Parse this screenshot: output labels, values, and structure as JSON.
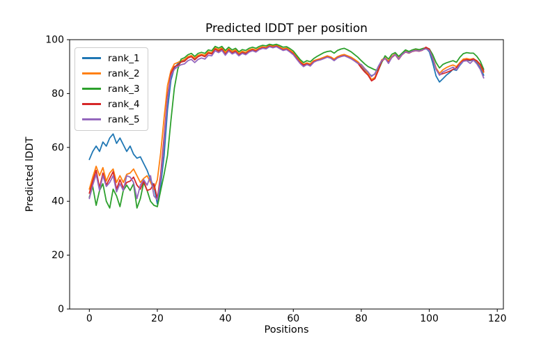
{
  "chart_data": {
    "type": "line",
    "title": "Predicted lDDT per position",
    "xlabel": "Positions",
    "ylabel": "Predicted lDDT",
    "xlim": [
      -5.8,
      121.8
    ],
    "ylim": [
      0,
      100
    ],
    "x_ticks": [
      0,
      20,
      40,
      60,
      80,
      100,
      120
    ],
    "y_ticks": [
      0,
      20,
      40,
      60,
      80,
      100
    ],
    "grid": false,
    "legend_position": "upper left",
    "x_start": 0,
    "x_step": 1,
    "n_points": 117,
    "series": [
      {
        "name": "rank_1",
        "color": "#1f77b4",
        "values": [
          55.5,
          58.5,
          60.5,
          58.5,
          62,
          60.5,
          63.5,
          65,
          61.5,
          63.5,
          61,
          58.5,
          60.5,
          57.5,
          56,
          56.5,
          54,
          51.5,
          48,
          45.5,
          39,
          46,
          57,
          74,
          85,
          89.5,
          91,
          92,
          92.3,
          93.5,
          94,
          92.8,
          94,
          94.5,
          94,
          95.3,
          95,
          96.8,
          96,
          96.8,
          95,
          96.5,
          95.3,
          96,
          94.6,
          95.5,
          95,
          96,
          96.5,
          96,
          96.8,
          97.2,
          97,
          97.8,
          97.4,
          97.8,
          97.1,
          96.4,
          96.8,
          95.9,
          95,
          93.4,
          91.8,
          90.5,
          91.2,
          90.8,
          92,
          92.5,
          92.8,
          93.3,
          93.8,
          93.4,
          92.6,
          93.5,
          94,
          94.3,
          93.8,
          93.3,
          92.5,
          91.6,
          89.8,
          88.4,
          87.6,
          86.6,
          87.2,
          90,
          92.3,
          93.2,
          91.8,
          93.6,
          94.6,
          92.9,
          94.6,
          95.6,
          95.2,
          95.8,
          96.1,
          95.9,
          96.3,
          96.9,
          95.5,
          91.5,
          86.5,
          84.3,
          85.5,
          86.8,
          87.8,
          89,
          88.6,
          90.5,
          92,
          92.4,
          92.2,
          92.6,
          91.5,
          89.5,
          86.8
        ]
      },
      {
        "name": "rank_2",
        "color": "#ff7f0e",
        "values": [
          44.5,
          49,
          53,
          49.5,
          52.5,
          47.5,
          50.5,
          52,
          47,
          49.5,
          47,
          50,
          50.5,
          52,
          49.5,
          47,
          48.5,
          49.5,
          47,
          44.5,
          48,
          58,
          71,
          83,
          88.5,
          91,
          91.5,
          92.2,
          92.6,
          93.7,
          94.1,
          93.2,
          94.2,
          94.6,
          94.2,
          95.5,
          95.2,
          96.9,
          96.3,
          97,
          95.3,
          96.6,
          95.6,
          96.2,
          94.9,
          95.7,
          95.3,
          96.2,
          96.6,
          96.2,
          96.9,
          97.4,
          97.1,
          98,
          97.6,
          97.9,
          97.3,
          96.6,
          96.9,
          96.1,
          95.2,
          93.6,
          92.1,
          90.8,
          91.4,
          91,
          92.2,
          92.6,
          93,
          93.5,
          94,
          93.6,
          92.8,
          93.7,
          94.2,
          94.5,
          94,
          93.5,
          92.7,
          91.8,
          90.5,
          89,
          87.3,
          85.2,
          86,
          89,
          92.5,
          93.3,
          92,
          93.8,
          94.7,
          93.1,
          94.7,
          95.7,
          95.3,
          95.9,
          96.2,
          96,
          96.4,
          96.8,
          96.2,
          93.5,
          89.5,
          87.5,
          88.8,
          89.6,
          90.2,
          90.6,
          90,
          91.5,
          92.8,
          93,
          92.7,
          93,
          92,
          90.5,
          87.8
        ]
      },
      {
        "name": "rank_3",
        "color": "#2ca02c",
        "values": [
          41.5,
          45.5,
          38.5,
          44,
          46.5,
          40,
          37.5,
          44.5,
          42,
          38,
          44,
          46,
          44,
          46.5,
          37.5,
          41,
          47,
          44,
          40,
          38.5,
          38,
          44,
          50,
          57,
          70,
          82,
          89,
          92.8,
          93.3,
          94.4,
          94.9,
          93.8,
          94.9,
          95.3,
          94.9,
          96.2,
          95.9,
          97.5,
          96.9,
          97.5,
          96,
          97.2,
          96.2,
          96.8,
          95.5,
          96.3,
          96,
          96.8,
          97.2,
          96.8,
          97.5,
          97.9,
          97.7,
          98.3,
          98,
          98.3,
          97.8,
          97.2,
          97.4,
          96.7,
          95.8,
          94.2,
          92.6,
          91.5,
          92.2,
          91.8,
          93,
          93.8,
          94.5,
          95.2,
          95.6,
          95.8,
          95,
          96,
          96.5,
          96.8,
          96.2,
          95.5,
          94.5,
          93.5,
          92.2,
          91,
          90,
          89.4,
          88.8,
          88.6,
          91.5,
          94,
          92.8,
          94.6,
          95.2,
          93.8,
          95,
          96.2,
          95.6,
          96.2,
          96.6,
          96.3,
          96.7,
          97,
          96.6,
          94.5,
          91.5,
          89.5,
          90.8,
          91.4,
          91.8,
          92.2,
          91.6,
          93.5,
          94.8,
          95.2,
          95,
          95,
          93.8,
          92,
          89
        ]
      },
      {
        "name": "rank_4",
        "color": "#d62728",
        "values": [
          43,
          47.5,
          51.5,
          45,
          50.5,
          46,
          48.5,
          51,
          44.5,
          48,
          45,
          47,
          47.5,
          49,
          46,
          44.5,
          47.5,
          44,
          44.5,
          46.5,
          41,
          50,
          64,
          79,
          87.5,
          90,
          90.5,
          91.7,
          92,
          93.2,
          93.7,
          92.5,
          93.7,
          94.2,
          93.7,
          95,
          94.7,
          96.5,
          95.7,
          96.5,
          94.5,
          96.2,
          95,
          95.7,
          94.3,
          95.2,
          94.7,
          95.7,
          96.2,
          95.7,
          96.5,
          97,
          96.8,
          97.6,
          97.2,
          97.6,
          96.9,
          96.2,
          96.5,
          95.6,
          94.7,
          93.1,
          91.5,
          90.6,
          91,
          90.5,
          91.8,
          92.3,
          92.6,
          93.1,
          93.6,
          93.2,
          92.3,
          93.3,
          93.8,
          94.1,
          93.6,
          93,
          92.2,
          91.3,
          89.5,
          88,
          86.8,
          84.7,
          85.5,
          88.5,
          92,
          93,
          91.6,
          93.4,
          94.4,
          92.7,
          94.4,
          95.4,
          95,
          95.6,
          95.9,
          95.7,
          96.1,
          97.2,
          96.5,
          93,
          89,
          87,
          87.4,
          87.8,
          88.3,
          89,
          89.6,
          91,
          92.3,
          92.6,
          92.4,
          92.8,
          92.2,
          90.8,
          88.3
        ]
      },
      {
        "name": "rank_5",
        "color": "#9467bd",
        "values": [
          41,
          46,
          50,
          44,
          49.5,
          45.5,
          47,
          49.5,
          43.5,
          46.5,
          44,
          49.5,
          49,
          47,
          41,
          46,
          48,
          46,
          49.5,
          42,
          40.5,
          48,
          62,
          78,
          86.5,
          89,
          90,
          90.7,
          91,
          92.2,
          92.7,
          91.5,
          92.7,
          93.2,
          92.8,
          94.2,
          94,
          95.9,
          95.2,
          96,
          94.2,
          95.8,
          94.7,
          95.3,
          94,
          94.9,
          94.4,
          95.4,
          95.9,
          95.4,
          96.3,
          96.8,
          96.6,
          97.4,
          97,
          97.4,
          96.7,
          96,
          96.3,
          95.4,
          94.4,
          92.8,
          91.2,
          90,
          90.8,
          90.2,
          91.6,
          92.2,
          92.5,
          93,
          93.5,
          93.1,
          92.2,
          93.2,
          93.7,
          94,
          93.5,
          92.9,
          92.1,
          91.2,
          90.8,
          89.3,
          88,
          86.3,
          87.4,
          90,
          92.2,
          93.1,
          91.2,
          93.5,
          94.5,
          92.8,
          94.5,
          95.5,
          95.1,
          95.7,
          96,
          95.8,
          96.2,
          96.6,
          96,
          93.2,
          89,
          86.8,
          88,
          88.6,
          89.2,
          89.8,
          88.8,
          90.8,
          92,
          92.2,
          91.2,
          92.4,
          91,
          89,
          85.8
        ]
      }
    ]
  }
}
